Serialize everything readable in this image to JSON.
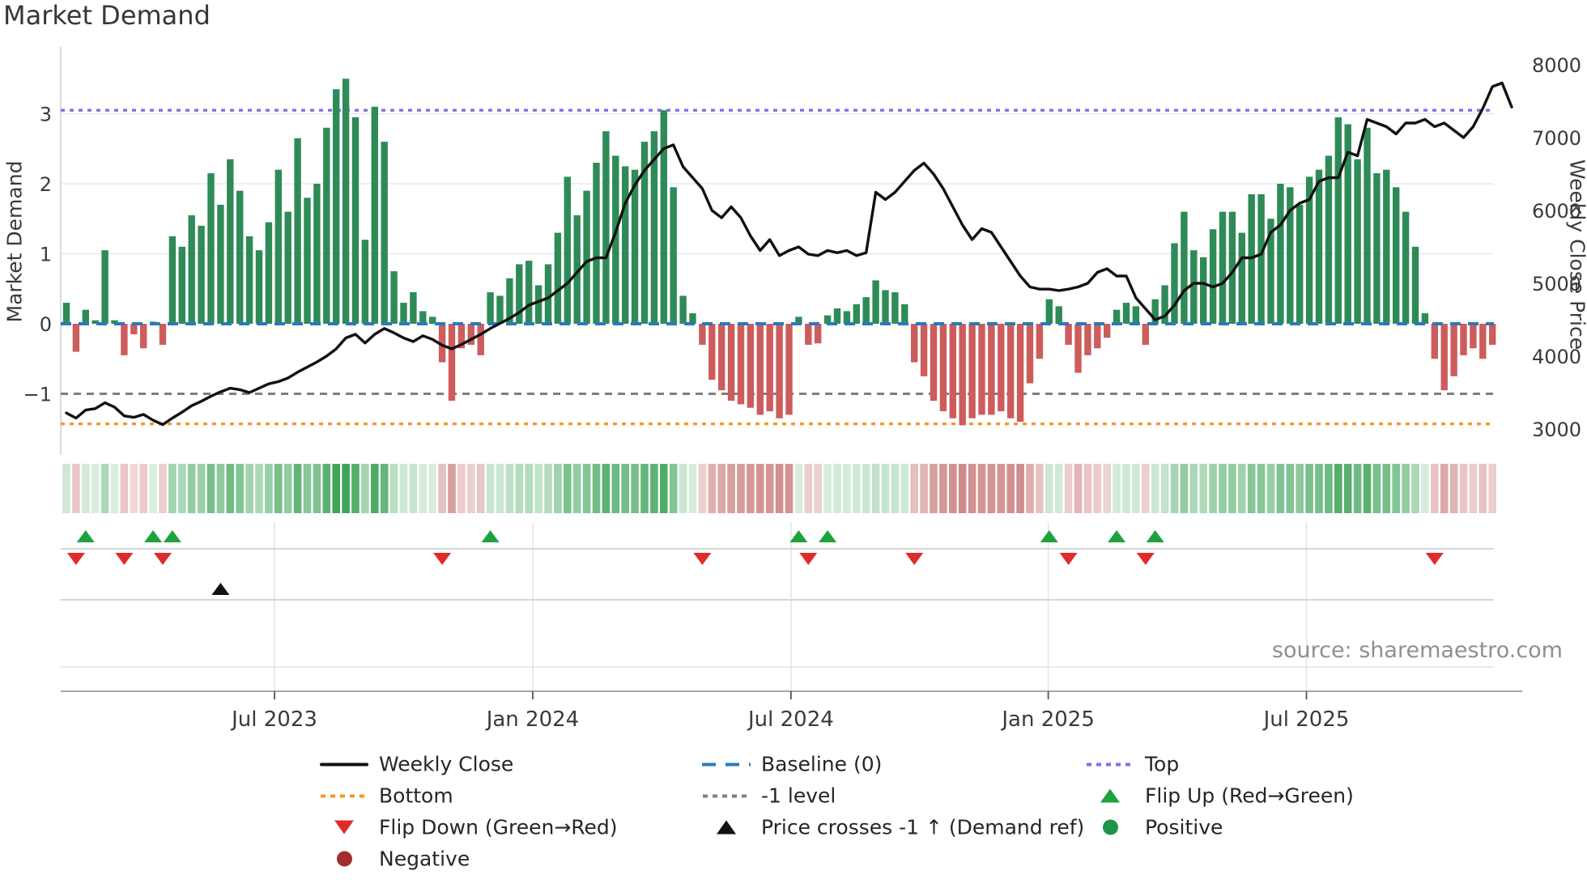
{
  "chart_data": {
    "type": "bar+line",
    "title": "Market Demand",
    "source": "source: sharemaestro.com",
    "left_axis": {
      "label": "Market Demand",
      "ticks": [
        "3",
        "2",
        "1",
        "0",
        "−1"
      ],
      "tick_values": [
        3,
        2,
        1,
        0,
        -1
      ],
      "range": [
        -1.9,
        3.9
      ]
    },
    "right_axis": {
      "label": "Weekly Close Price",
      "ticks": [
        "8000",
        "7000",
        "6000",
        "5000",
        "4000",
        "3000"
      ],
      "tick_values": [
        8000,
        7000,
        6000,
        5000,
        4000,
        3000
      ],
      "range": [
        2670,
        8220
      ]
    },
    "x_axis": {
      "tick_labels": [
        "Jul 2023",
        "Jan 2024",
        "Jul 2024",
        "Jan 2025",
        "Jul 2025"
      ],
      "tick_weeks": [
        21.6,
        48.4,
        75.2,
        101.9,
        128.7
      ]
    },
    "ref_lines": {
      "top": {
        "label": "Top",
        "value": 3.05,
        "color": "#8070e0",
        "style": "dotted"
      },
      "baseline": {
        "label": "Baseline (0)",
        "value": 0,
        "color": "#2a7ab9",
        "style": "dashed"
      },
      "minus1": {
        "label": "-1 level",
        "value": -1,
        "color": "#7f7f7f",
        "style": "dashed"
      },
      "bottom": {
        "label": "Bottom",
        "value": -1.43,
        "color": "#f5962b",
        "style": "dotted"
      }
    },
    "series": [
      {
        "name": "Market Demand",
        "type": "bar",
        "positive_label": "Positive",
        "negative_label": "Negative",
        "values": [
          0.3,
          -0.4,
          0.2,
          0.05,
          1.05,
          0.05,
          -0.45,
          -0.15,
          -0.35,
          0.03,
          -0.3,
          1.25,
          1.1,
          1.55,
          1.4,
          2.15,
          1.7,
          2.35,
          1.9,
          1.25,
          1.05,
          1.45,
          2.2,
          1.6,
          2.65,
          1.8,
          2.0,
          2.8,
          3.35,
          3.5,
          2.95,
          1.2,
          3.1,
          2.6,
          0.75,
          0.3,
          0.45,
          0.18,
          0.1,
          -0.55,
          -1.1,
          -0.35,
          -0.3,
          -0.45,
          0.45,
          0.4,
          0.65,
          0.85,
          0.9,
          0.55,
          0.85,
          1.3,
          2.1,
          1.55,
          1.9,
          2.3,
          2.75,
          2.4,
          2.25,
          2.2,
          2.6,
          2.75,
          3.05,
          1.95,
          0.4,
          0.15,
          -0.3,
          -0.8,
          -0.95,
          -1.1,
          -1.15,
          -1.2,
          -1.3,
          -1.25,
          -1.35,
          -1.3,
          0.1,
          -0.3,
          -0.28,
          0.12,
          0.22,
          0.18,
          0.28,
          0.38,
          0.62,
          0.48,
          0.45,
          0.28,
          -0.55,
          -0.75,
          -1.1,
          -1.25,
          -1.35,
          -1.45,
          -1.35,
          -1.3,
          -1.3,
          -1.25,
          -1.35,
          -1.4,
          -0.85,
          -0.5,
          0.35,
          0.25,
          -0.3,
          -0.7,
          -0.45,
          -0.35,
          -0.2,
          0.2,
          0.3,
          0.25,
          -0.3,
          0.35,
          0.55,
          1.15,
          1.6,
          1.05,
          0.95,
          1.35,
          1.6,
          1.6,
          1.3,
          1.85,
          1.85,
          1.5,
          2.0,
          1.95,
          1.7,
          2.1,
          2.2,
          2.4,
          2.95,
          2.85,
          2.35,
          2.8,
          2.15,
          2.2,
          1.95,
          1.6,
          1.1,
          0.15,
          -0.5,
          -0.95,
          -0.75,
          -0.45,
          -0.35,
          -0.5,
          -0.3
        ]
      },
      {
        "name": "Weekly Close",
        "type": "line",
        "values": [
          3220,
          3150,
          3260,
          3280,
          3360,
          3300,
          3180,
          3160,
          3200,
          3120,
          3060,
          3150,
          3230,
          3320,
          3380,
          3450,
          3510,
          3560,
          3540,
          3500,
          3560,
          3620,
          3650,
          3700,
          3780,
          3850,
          3920,
          4000,
          4100,
          4250,
          4300,
          4180,
          4300,
          4380,
          4320,
          4250,
          4200,
          4280,
          4230,
          4150,
          4100,
          4160,
          4230,
          4300,
          4380,
          4450,
          4520,
          4600,
          4700,
          4750,
          4800,
          4900,
          5000,
          5150,
          5300,
          5350,
          5350,
          5700,
          6100,
          6350,
          6550,
          6700,
          6850,
          6900,
          6600,
          6450,
          6300,
          6000,
          5900,
          6050,
          5900,
          5650,
          5450,
          5600,
          5380,
          5450,
          5500,
          5400,
          5380,
          5450,
          5420,
          5450,
          5380,
          5420,
          6250,
          6150,
          6250,
          6400,
          6550,
          6650,
          6500,
          6300,
          6050,
          5800,
          5600,
          5750,
          5700,
          5500,
          5300,
          5100,
          4950,
          4920,
          4920,
          4900,
          4920,
          4950,
          5000,
          5150,
          5200,
          5100,
          5100,
          4800,
          4650,
          4500,
          4550,
          4700,
          4900,
          5000,
          5000,
          4950,
          5000,
          5150,
          5350,
          5350,
          5400,
          5700,
          5800,
          6000,
          6100,
          6150,
          6400,
          6450,
          6450,
          6800,
          6750,
          7250,
          7200,
          7150,
          7050,
          7200,
          7200,
          7250,
          7150,
          7200,
          7100,
          7000,
          7150,
          7400,
          7700,
          7750,
          7420
        ]
      }
    ],
    "markers": {
      "flip_up": {
        "label": "Flip Up (Red→Green)",
        "color": "#1ea23c",
        "week_indices": [
          2,
          9,
          11,
          44,
          76,
          79,
          102,
          109,
          113
        ]
      },
      "flip_down": {
        "label": "Flip Down (Green→Red)",
        "color": "#e12b2b",
        "week_indices": [
          1,
          6,
          10,
          39,
          66,
          77,
          88,
          104,
          112,
          142
        ]
      },
      "price_cross": {
        "label": "Price crosses -1 ↑ (Demand ref)",
        "color": "#111111",
        "week_indices": [
          16
        ]
      }
    },
    "heatmap": {
      "description": "weekly demand intensity strip",
      "positive_color": "#3fa45a",
      "negative_color": "#cf8a8a"
    },
    "legend_position": "bottom",
    "grid": true
  },
  "colors": {
    "bar_positive": "#2e8b57",
    "bar_negative": "#cd5c5c",
    "price_line": "#111111",
    "grid": "#e8e8f0",
    "panel_line": "#d6d6d6",
    "spine": "#9b9b9b",
    "tick_text": "#3a3a3a"
  },
  "legend": {
    "items": [
      {
        "id": "weekly-close",
        "marker": "line",
        "color": "#111111",
        "label": "Weekly Close"
      },
      {
        "id": "baseline",
        "marker": "dash",
        "color": "#2a7ab9",
        "label": "Baseline (0)"
      },
      {
        "id": "top",
        "marker": "dots",
        "color": "#8070e0",
        "label": "Top"
      },
      {
        "id": "bottom",
        "marker": "dots",
        "color": "#f5962b",
        "label": "Bottom"
      },
      {
        "id": "minus1-level",
        "marker": "dots",
        "color": "#7f7f7f",
        "label": "-1 level"
      },
      {
        "id": "flip-up",
        "marker": "tri-up",
        "color": "#1ea23c",
        "label": "Flip Up (Red→Green)"
      },
      {
        "id": "flip-down",
        "marker": "tri-down",
        "color": "#e12b2b",
        "label": "Flip Down (Green→Red)"
      },
      {
        "id": "price-cross",
        "marker": "tri-up",
        "color": "#111111",
        "label": "Price crosses -1 ↑ (Demand ref)"
      },
      {
        "id": "positive",
        "marker": "circ",
        "color": "#1f9347",
        "label": "Positive"
      },
      {
        "id": "negative",
        "marker": "circ",
        "color": "#a22c2c",
        "label": "Negative"
      }
    ]
  }
}
